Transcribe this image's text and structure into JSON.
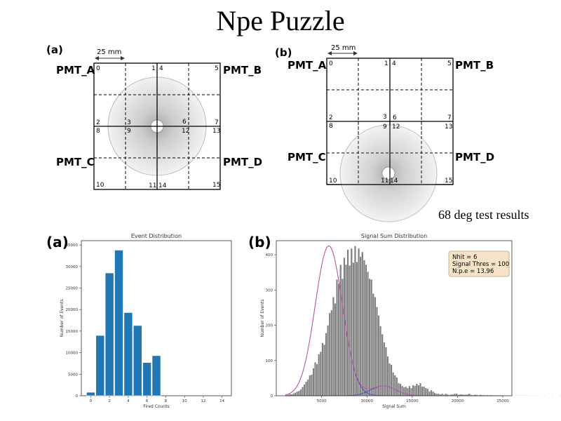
{
  "slide": {
    "title": "Npe Puzzle",
    "subtitle": "68 deg test results"
  },
  "diagrams": [
    {
      "panel": "(a)",
      "scale": "25 mm",
      "pmt_labels": [
        "PMT_A",
        "PMT_B",
        "PMT_C",
        "PMT_D"
      ],
      "pixel_numbers": [
        "0",
        "1",
        "4",
        "5",
        "2",
        "3",
        "6",
        "7",
        "8",
        "9",
        "12",
        "13",
        "10",
        "11",
        "14",
        "15"
      ]
    },
    {
      "panel": "(b)",
      "scale": "25 mm",
      "pmt_labels": [
        "PMT_A",
        "PMT_B",
        "PMT_C",
        "PMT_D"
      ],
      "pixel_numbers": [
        "0",
        "1",
        "4",
        "5",
        "2",
        "3",
        "6",
        "7",
        "8",
        "9",
        "12",
        "13",
        "10",
        "11",
        "14",
        "15"
      ]
    }
  ],
  "chart_data": [
    {
      "panel": "(a)",
      "type": "bar",
      "title": "Event Distribution",
      "xlabel": "Fired Counts",
      "ylabel": "Number of Events",
      "x": [
        0,
        1,
        2,
        3,
        4,
        5,
        6,
        7
      ],
      "values": [
        800,
        14000,
        28500,
        33800,
        19300,
        16300,
        7700,
        9300
      ],
      "xlim": [
        -1,
        15
      ],
      "ylim": [
        0,
        36000
      ],
      "xticks": [
        "0",
        "2",
        "4",
        "6",
        "8",
        "10",
        "12",
        "14"
      ],
      "yticks": [
        "0",
        "5000",
        "10000",
        "15000",
        "20000",
        "25000",
        "30000",
        "35000"
      ],
      "color": "#1f77b4"
    },
    {
      "panel": "(b)",
      "type": "bar",
      "title": "Signal Sum Distribution",
      "xlabel": "Signal Sum",
      "ylabel": "Number of Events",
      "xlim": [
        0,
        26000
      ],
      "ylim": [
        0,
        440
      ],
      "xticks": [
        "5000",
        "10000",
        "15000",
        "20000",
        "25000"
      ],
      "yticks": [
        "0",
        "100",
        "200",
        "300",
        "400"
      ],
      "legend": [
        "Nhit = 6",
        "Signal Thres = 100",
        "N.p.e = 13.96"
      ],
      "legend_position": "top-right",
      "bar_color": "#808080",
      "fit_total_color": "#cc5599",
      "fit_component_color": "#3355cc",
      "histogram": {
        "bin_start": 1000,
        "bin_width": 200,
        "counts": [
          2,
          3,
          5,
          4,
          7,
          9,
          12,
          14,
          18,
          25,
          32,
          40,
          46,
          58,
          60,
          78,
          95,
          90,
          118,
          125,
          150,
          145,
          178,
          200,
          235,
          243,
          280,
          262,
          330,
          318,
          372,
          332,
          392,
          372,
          415,
          370,
          418,
          378,
          425,
          380,
          418,
          395,
          408,
          385,
          372,
          352,
          332,
          330,
          290,
          280,
          252,
          228,
          198,
          175,
          152,
          138,
          112,
          92,
          88,
          66,
          58,
          52,
          36,
          34,
          28,
          24,
          26,
          22,
          28,
          22,
          30,
          28,
          34,
          30,
          36,
          26,
          26,
          22,
          20,
          12,
          16,
          12,
          8,
          6,
          6,
          4,
          6,
          3,
          6,
          4,
          2,
          4,
          4,
          6,
          6,
          3,
          4,
          4,
          3,
          3,
          4,
          6,
          3,
          2,
          3,
          3,
          1,
          3,
          2,
          2,
          1,
          2,
          1,
          2,
          1,
          1,
          1,
          1,
          1,
          1,
          1,
          0,
          1,
          1,
          1,
          1,
          0,
          1,
          1,
          1,
          0,
          1,
          1,
          1,
          0,
          1,
          0,
          1,
          0,
          1,
          0,
          0,
          0,
          1,
          0,
          0,
          0,
          1,
          0,
          0,
          0,
          1
        ]
      },
      "fit_components": [
        {
          "mean": 5800,
          "sigma": 1500,
          "amplitude": 425
        },
        {
          "mean": 11800,
          "sigma": 1350,
          "amplitude": 28
        }
      ]
    }
  ]
}
